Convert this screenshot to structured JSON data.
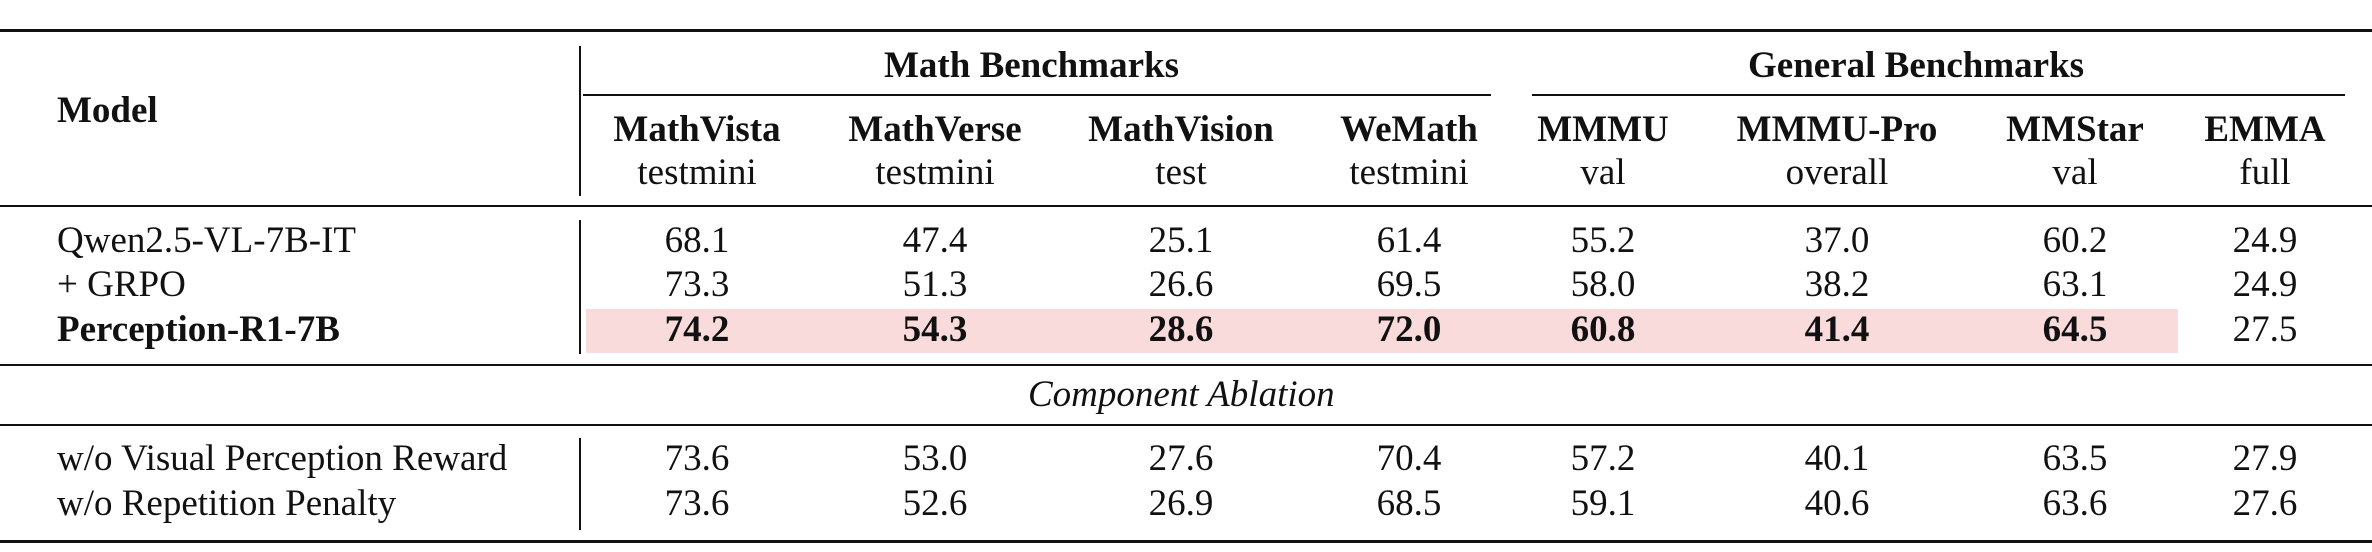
{
  "table": {
    "model_header": "Model",
    "groups": [
      {
        "label": "Math Benchmarks"
      },
      {
        "label": "General Benchmarks"
      }
    ],
    "columns": [
      {
        "name": "MathVista",
        "split": "testmini"
      },
      {
        "name": "MathVerse",
        "split": "testmini"
      },
      {
        "name": "MathVision",
        "split": "test"
      },
      {
        "name": "WeMath",
        "split": "testmini"
      },
      {
        "name": "MMMU",
        "split": "val"
      },
      {
        "name": "MMMU-Pro",
        "split": "overall"
      },
      {
        "name": "MMStar",
        "split": "val"
      },
      {
        "name": "EMMA",
        "split": "full"
      }
    ],
    "main_rows": [
      {
        "model": "Qwen2.5-VL-7B-IT",
        "values": [
          "68.1",
          "47.4",
          "25.1",
          "61.4",
          "55.2",
          "37.0",
          "60.2",
          "24.9"
        ]
      },
      {
        "model": "+ GRPO",
        "values": [
          "73.3",
          "51.3",
          "26.6",
          "69.5",
          "58.0",
          "38.2",
          "63.1",
          "24.9"
        ]
      },
      {
        "model": "Perception-R1-7B",
        "values": [
          "74.2",
          "54.3",
          "28.6",
          "72.0",
          "60.8",
          "41.4",
          "64.5",
          "27.5"
        ]
      }
    ],
    "section_label": "Component Ablation",
    "ablation_rows": [
      {
        "model": "w/o Visual Perception Reward",
        "values": [
          "73.6",
          "53.0",
          "27.6",
          "70.4",
          "57.2",
          "40.1",
          "63.5",
          "27.9"
        ]
      },
      {
        "model": "w/o Repetition Penalty",
        "values": [
          "73.6",
          "52.6",
          "26.9",
          "68.5",
          "59.1",
          "40.6",
          "63.6",
          "27.6"
        ]
      }
    ]
  },
  "colors": {
    "highlight": "#fadbdc",
    "text": "#111111"
  }
}
